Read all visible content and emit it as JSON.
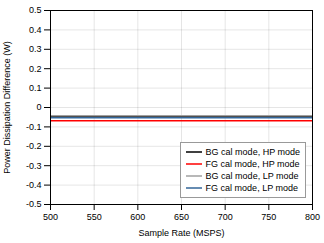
{
  "chart_data": {
    "type": "line",
    "xlabel": "Sample Rate (MSPS)",
    "ylabel": "Power Dissipation Difference (W)",
    "x": [
      500,
      800
    ],
    "series": [
      {
        "name": "BG cal mode, HP mode",
        "color": "#000000",
        "values": [
          -0.048,
          -0.048
        ]
      },
      {
        "name": "FG cal mode, HP mode",
        "color": "#ff0000",
        "values": [
          -0.068,
          -0.068
        ]
      },
      {
        "name": "BG cal mode, LP mode",
        "color": "#a0a0a0",
        "values": [
          -0.043,
          -0.043
        ]
      },
      {
        "name": "FG cal mode, LP mode",
        "color": "#336699",
        "values": [
          -0.053,
          -0.053
        ]
      }
    ],
    "xlim": [
      500,
      800
    ],
    "ylim": [
      -0.5,
      0.5
    ],
    "xticks": [
      500,
      550,
      600,
      650,
      700,
      750,
      800
    ],
    "yticks": [
      -0.5,
      -0.4,
      -0.3,
      -0.2,
      -0.1,
      0,
      0.1,
      0.2,
      0.3,
      0.4,
      0.5
    ],
    "grid": true,
    "legend": "lower right"
  }
}
